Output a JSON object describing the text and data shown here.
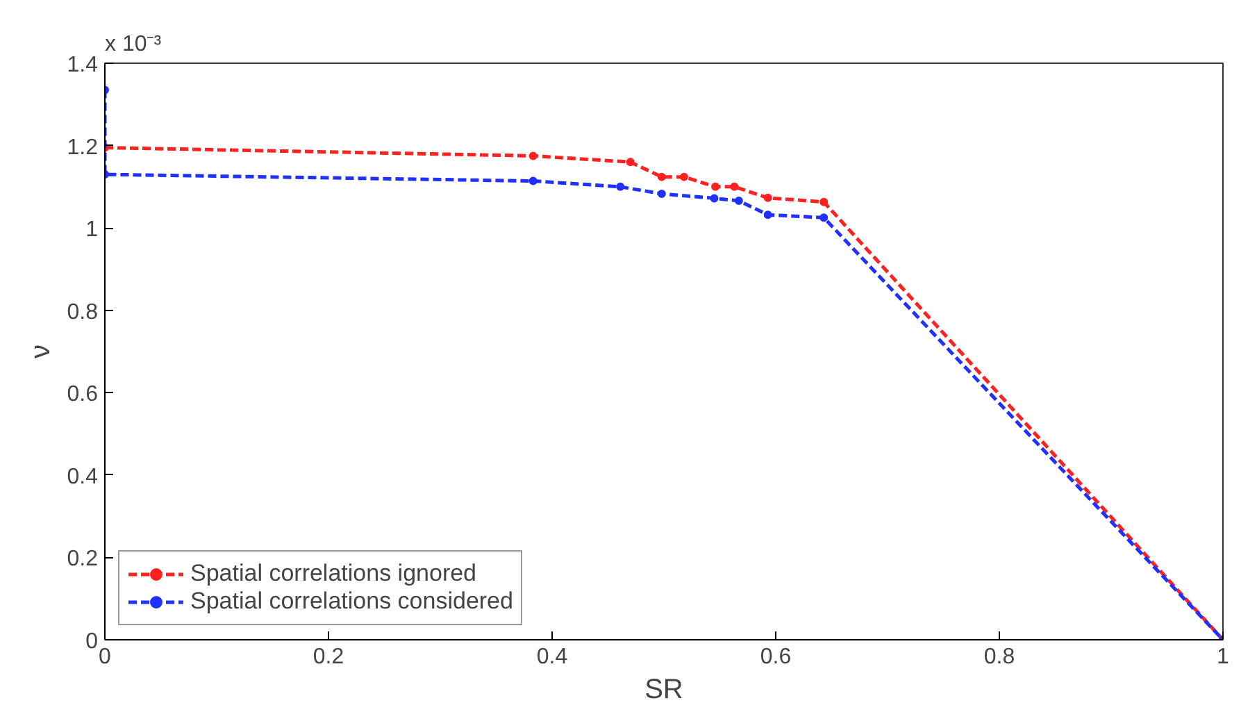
{
  "chart_data": {
    "type": "line",
    "xlabel": "SR",
    "ylabel": "ν",
    "annotations": [
      "x 10⁻³"
    ],
    "series": [
      {
        "name": "Spatial correlations ignored",
        "color": "#ff2020",
        "x": [
          0,
          0.383,
          0.47,
          0.498,
          0.518,
          0.546,
          0.563,
          0.593,
          0.643,
          1
        ],
        "values": [
          1.195,
          1.175,
          1.16,
          1.124,
          1.124,
          1.1,
          1.1,
          1.073,
          1.063,
          0
        ]
      },
      {
        "name": "Spatial correlations considered",
        "color": "#2030ff",
        "x": [
          0,
          0,
          0.383,
          0.461,
          0.498,
          0.545,
          0.567,
          0.593,
          0.643,
          1
        ],
        "values": [
          1.335,
          1.13,
          1.114,
          1.1,
          1.083,
          1.072,
          1.066,
          1.032,
          1.025,
          0
        ]
      }
    ],
    "xlim": [
      0,
      1
    ],
    "ylim": [
      0,
      1.4
    ],
    "xticks": [
      0,
      0.2,
      0.4,
      0.6,
      0.8,
      1
    ],
    "yticks": [
      0,
      0.2,
      0.4,
      0.6,
      0.8,
      1,
      1.2,
      1.4
    ],
    "grid": false,
    "legend": "bottom left",
    "marker": "circle",
    "line_style": "dashed"
  }
}
